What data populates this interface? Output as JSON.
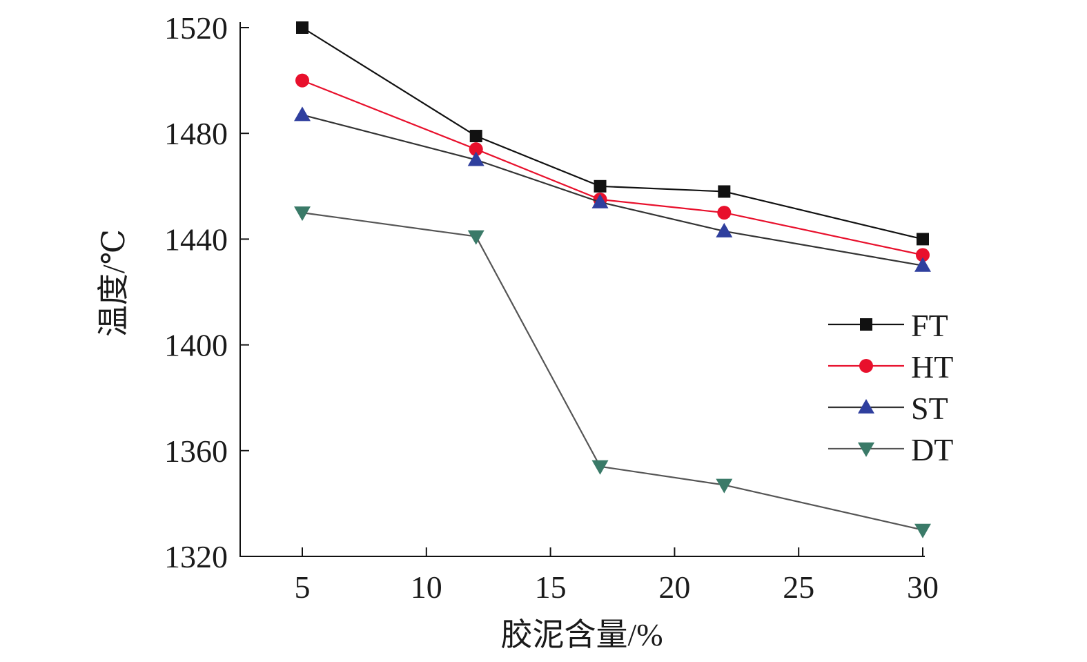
{
  "chart_data": {
    "type": "line",
    "xlabel": "胶泥含量/%",
    "ylabel": "温度/℃",
    "x": [
      5,
      12,
      17,
      22,
      30
    ],
    "xticks": [
      5,
      10,
      15,
      20,
      25,
      30
    ],
    "yticks": [
      1320,
      1360,
      1400,
      1440,
      1480,
      1520
    ],
    "xlim": [
      0,
      30
    ],
    "ylim": [
      1320,
      1520
    ],
    "grid": false,
    "legend_position": "right",
    "series": [
      {
        "name": "FT",
        "values": [
          1520,
          1479,
          1460,
          1458,
          1440
        ],
        "marker": "square",
        "color": "#111111",
        "line_color": "#111111"
      },
      {
        "name": "HT",
        "values": [
          1500,
          1474,
          1455,
          1450,
          1434
        ],
        "marker": "circle",
        "color": "#e8102c",
        "line_color": "#e8102c"
      },
      {
        "name": "ST",
        "values": [
          1487,
          1470,
          1454,
          1443,
          1430
        ],
        "marker": "triangle-up",
        "color": "#2f3f9e",
        "line_color": "#333333"
      },
      {
        "name": "DT",
        "values": [
          1450,
          1441,
          1354,
          1347,
          1330
        ],
        "marker": "triangle-down",
        "color": "#3a7a68",
        "line_color": "#555555"
      }
    ]
  }
}
